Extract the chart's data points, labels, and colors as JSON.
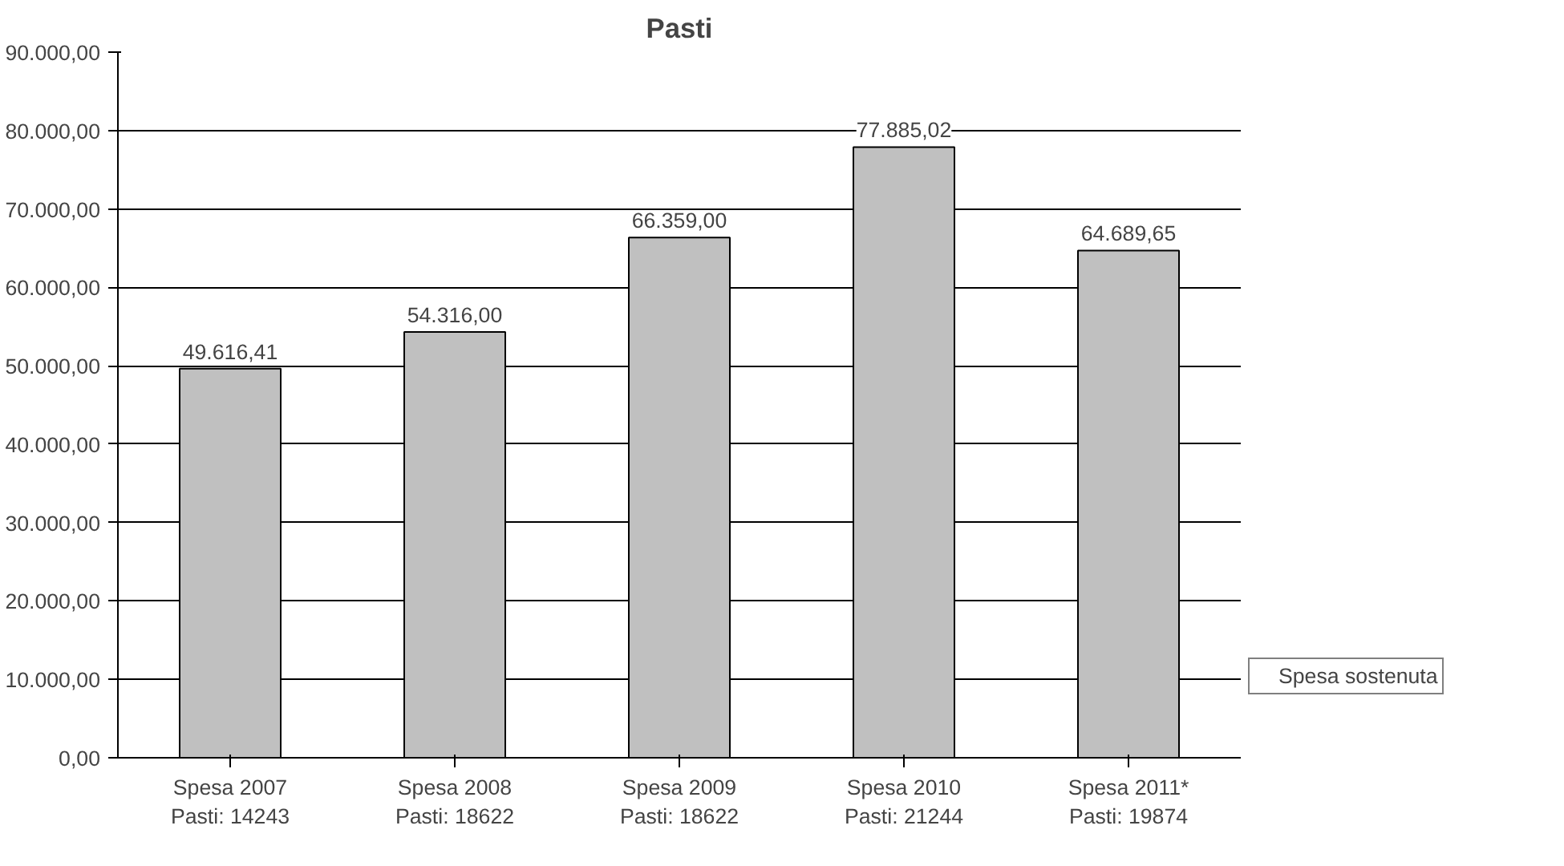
{
  "chart_data": {
    "type": "bar",
    "title": "Pasti",
    "categories": [
      "Spesa 2007\nPasti: 14243",
      "Spesa 2008\nPasti: 18622",
      "Spesa 2009\nPasti: 18622",
      "Spesa 2010\nPasti: 21244",
      "Spesa 2011*\nPasti: 19874"
    ],
    "series": [
      {
        "name": "Spesa sostenuta",
        "color": "#c0c0c0",
        "values": [
          49616.41,
          54316.0,
          66359.0,
          77885.02,
          64689.65
        ],
        "value_labels": [
          "49.616,41",
          "54.316,00",
          "66.359,00",
          "77.885,02",
          "64.689,65"
        ]
      }
    ],
    "ylim": [
      0,
      90000
    ],
    "yticks": [
      {
        "value": 0,
        "label": "0,00"
      },
      {
        "value": 10000,
        "label": "10.000,00"
      },
      {
        "value": 20000,
        "label": "20.000,00"
      },
      {
        "value": 30000,
        "label": "30.000,00"
      },
      {
        "value": 40000,
        "label": "40.000,00"
      },
      {
        "value": 50000,
        "label": "50.000,00"
      },
      {
        "value": 60000,
        "label": "60.000,00"
      },
      {
        "value": 70000,
        "label": "70.000,00"
      },
      {
        "value": 80000,
        "label": "80.000,00"
      },
      {
        "value": 90000,
        "label": "90.000,00"
      }
    ],
    "grid": "y",
    "legend": "right"
  }
}
